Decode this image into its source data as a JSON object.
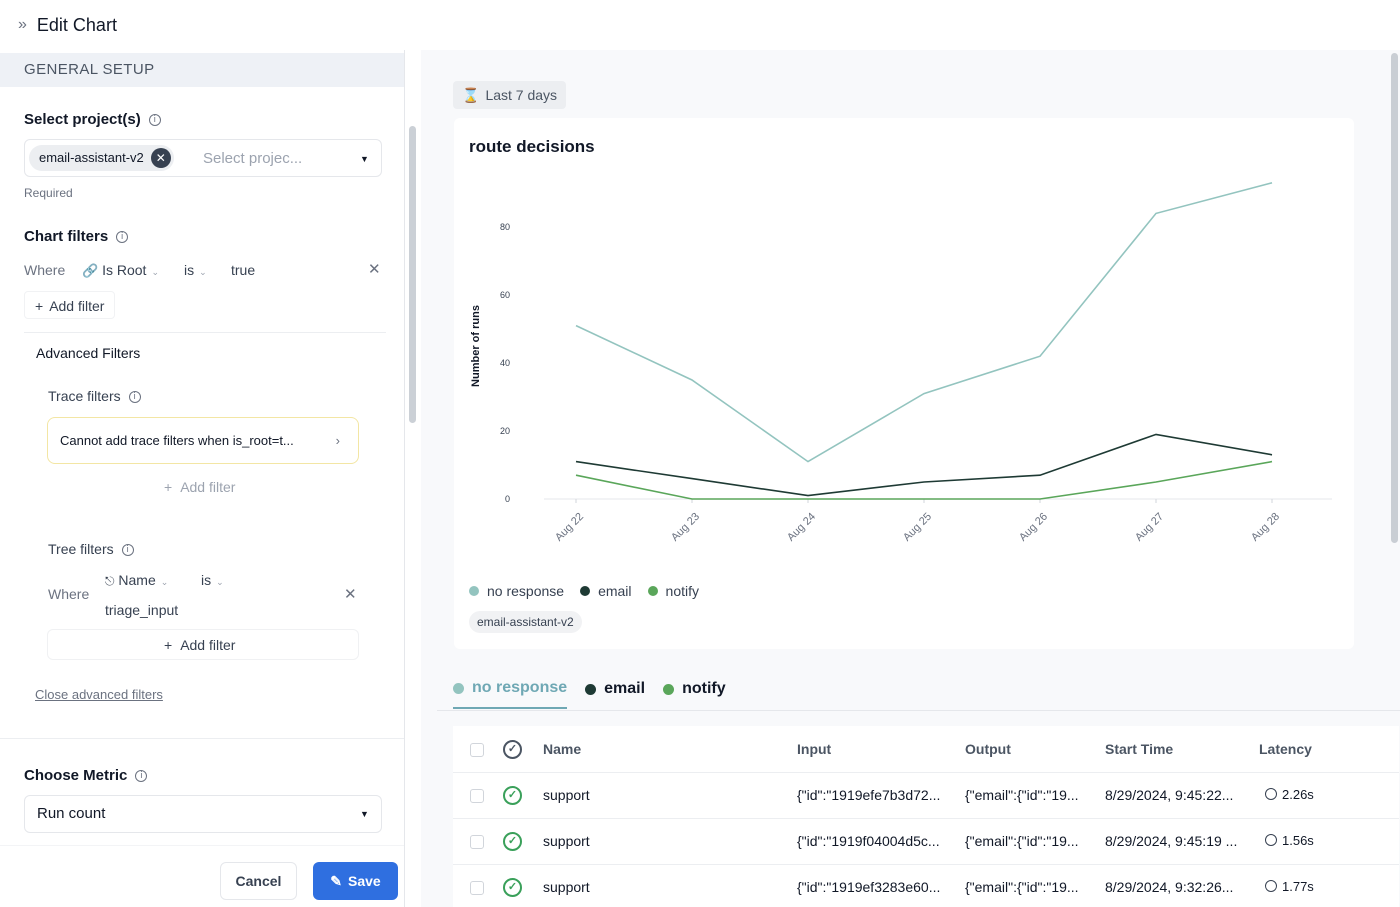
{
  "header": {
    "title": "Edit Chart"
  },
  "left": {
    "section": "GENERAL SETUP",
    "projects_label": "Select project(s)",
    "selected_project": "email-assistant-v2",
    "projects_placeholder": "Select projec...",
    "required": "Required",
    "chart_filters_label": "Chart filters",
    "where": "Where",
    "filter_field": "Is Root",
    "filter_op": "is",
    "filter_value": "true",
    "add_filter": "Add filter",
    "advanced_label": "Advanced Filters",
    "trace_label": "Trace filters",
    "trace_warning": "Cannot add trace filters when is_root=t...",
    "trace_add": "Add filter",
    "tree_label": "Tree filters",
    "tree_where": "Where",
    "tree_field": "Name",
    "tree_op": "is",
    "tree_value": "triage_input",
    "tree_add": "Add filter",
    "close_advanced": "Close advanced filters",
    "metric_label": "Choose Metric",
    "metric_value": "Run count",
    "cancel": "Cancel",
    "save": "Save"
  },
  "right": {
    "range": "Last 7 days",
    "project_tag": "email-assistant-v2",
    "tabs": [
      {
        "label": "no response",
        "color": "#93c4bf"
      },
      {
        "label": "email",
        "color": "#1e3a34"
      },
      {
        "label": "notify",
        "color": "#5aa65a"
      }
    ],
    "table": {
      "headers": [
        "Name",
        "Input",
        "Output",
        "Start Time",
        "Latency"
      ],
      "rows": [
        {
          "name": "support",
          "input": "{\"id\":\"1919efe7b3d72...",
          "output": "{\"email\":{\"id\":\"19...",
          "start": "8/29/2024, 9:45:22...",
          "latency": "2.26s"
        },
        {
          "name": "support",
          "input": "{\"id\":\"1919f04004d5c...",
          "output": "{\"email\":{\"id\":\"19...",
          "start": "8/29/2024, 9:45:19 ...",
          "latency": "1.56s"
        },
        {
          "name": "support",
          "input": "{\"id\":\"1919ef3283e60...",
          "output": "{\"email\":{\"id\":\"19...",
          "start": "8/29/2024, 9:32:26...",
          "latency": "1.77s"
        }
      ]
    }
  },
  "chart_data": {
    "type": "line",
    "title": "route decisions",
    "ylabel": "Number of runs",
    "xlabel": "",
    "categories": [
      "Aug 22",
      "Aug 23",
      "Aug 24",
      "Aug 25",
      "Aug 26",
      "Aug 27",
      "Aug 28"
    ],
    "ylim": [
      0,
      90
    ],
    "yticks": [
      0,
      20,
      40,
      60,
      80
    ],
    "grid": false,
    "legend": "bottom-left",
    "series": [
      {
        "name": "no response",
        "color": "#93c4bf",
        "values": [
          51,
          35,
          11,
          31,
          42,
          84,
          93
        ]
      },
      {
        "name": "email",
        "color": "#1e3a34",
        "values": [
          11,
          6,
          1,
          5,
          7,
          19,
          13
        ]
      },
      {
        "name": "notify",
        "color": "#5aa65a",
        "values": [
          7,
          0,
          0,
          0,
          0,
          5,
          11
        ]
      }
    ]
  }
}
